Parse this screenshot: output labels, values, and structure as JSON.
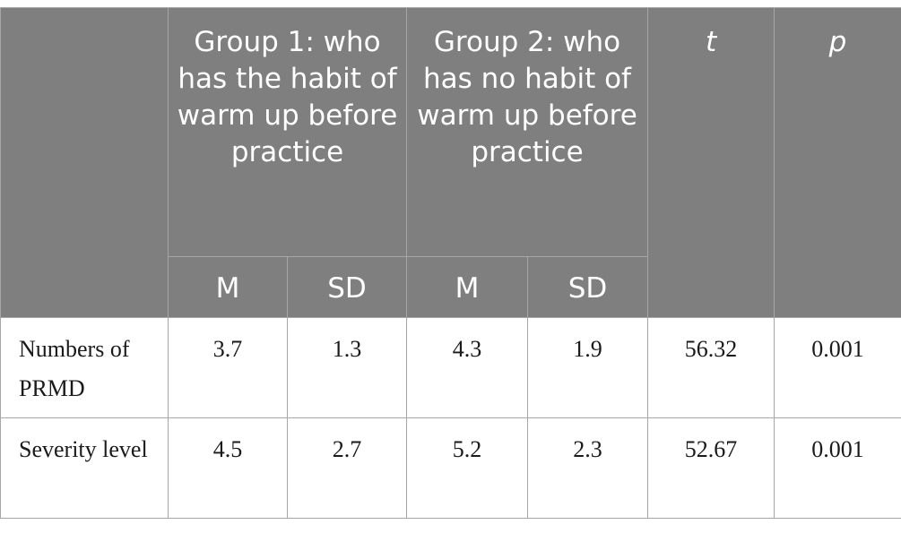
{
  "table": {
    "corner_header": "",
    "group1_header": "Group 1: who has the habit of warm up before practice",
    "group2_header": "Group 2: who has no habit of warm up before practice",
    "t_header": "t",
    "p_header": "p",
    "sub_headers": {
      "g1_mean": "M",
      "g1_sd": "SD",
      "g2_mean": "M",
      "g2_sd": "SD"
    },
    "rows": [
      {
        "label": "Numbers of PRMD",
        "g1_m": "3.7",
        "g1_sd": "1.3",
        "g2_m": "4.3",
        "g2_sd": "1.9",
        "t": "56.32",
        "p": "0.001"
      },
      {
        "label": "Severity level",
        "g1_m": "4.5",
        "g1_sd": "2.7",
        "g2_m": "5.2",
        "g2_sd": "2.3",
        "t": "52.67",
        "p": "0.001"
      }
    ]
  },
  "colors": {
    "header_bg": "#7f7f7f",
    "header_text": "#ffffff",
    "body_text": "#1a1a1a",
    "border": "#a6a6a6"
  }
}
